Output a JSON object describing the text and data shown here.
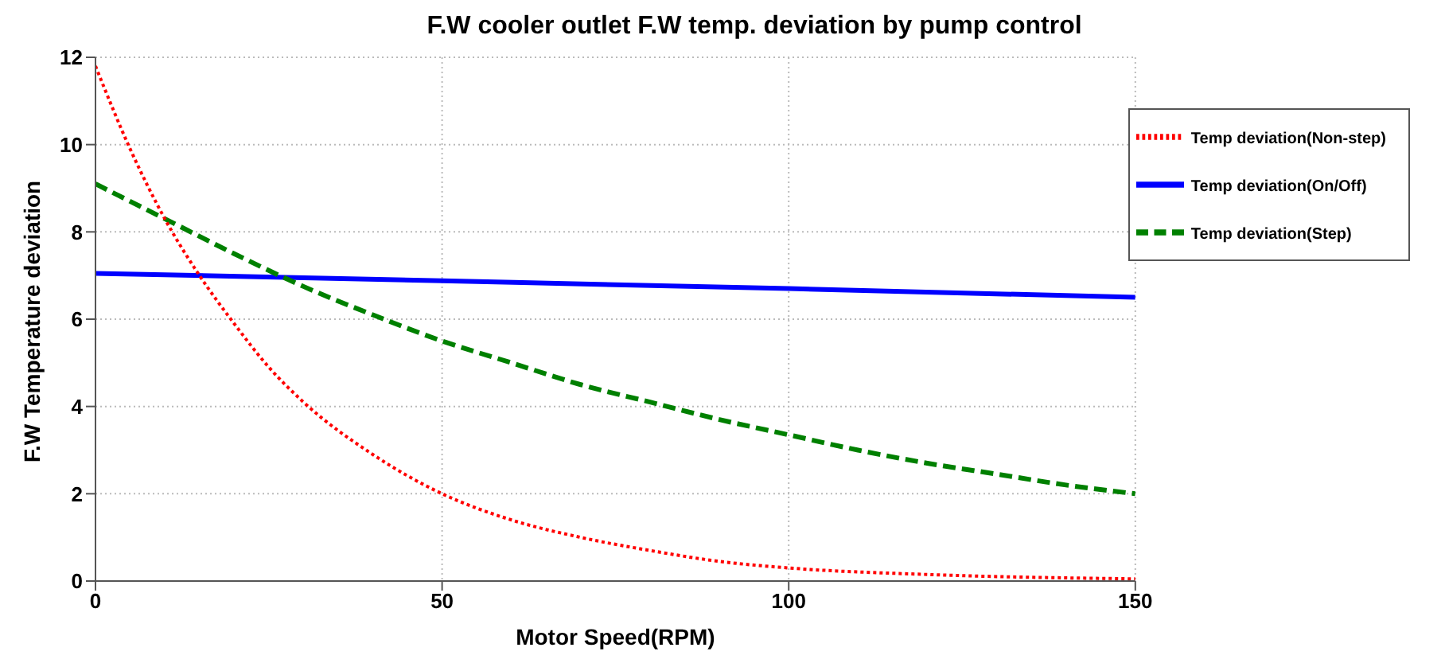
{
  "chart_data": {
    "type": "line",
    "title": "F.W cooler outlet F.W temp. deviation by pump control",
    "xlabel": "Motor Speed(RPM)",
    "ylabel": "F.W Temperature deviation",
    "xlim": [
      0,
      150
    ],
    "xticks": [
      0,
      50,
      100,
      150
    ],
    "ylim": [
      0,
      12
    ],
    "yticks": [
      0,
      2,
      4,
      6,
      8,
      10,
      12
    ],
    "grid": true,
    "legend": "top right",
    "marker": "none",
    "series": [
      {
        "name": "Temp deviation(On/Off)",
        "color": "#0000ff",
        "line_style": "solid",
        "x": [
          0,
          50,
          100,
          150
        ],
        "values": [
          7.05,
          6.88,
          6.7,
          6.5
        ]
      },
      {
        "name": "Temp deviation(Step)",
        "color": "#008000",
        "line_style": "dashed",
        "x": [
          0,
          10,
          20,
          30,
          40,
          50,
          60,
          70,
          80,
          90,
          100,
          110,
          120,
          130,
          140,
          150
        ],
        "values": [
          9.1,
          8.3,
          7.5,
          6.75,
          6.1,
          5.5,
          5.0,
          4.5,
          4.1,
          3.7,
          3.35,
          3.0,
          2.7,
          2.45,
          2.2,
          2.0
        ]
      },
      {
        "name": "Temp deviation(Non-step)",
        "color": "#ff0000",
        "line_style": "dotted",
        "x": [
          0,
          5,
          10,
          15,
          20,
          25,
          30,
          40,
          50,
          60,
          70,
          80,
          90,
          100,
          120,
          150
        ],
        "values": [
          11.8,
          9.9,
          8.3,
          7.0,
          5.9,
          4.9,
          4.1,
          2.9,
          2.0,
          1.4,
          1.0,
          0.7,
          0.45,
          0.3,
          0.15,
          0.05
        ]
      }
    ]
  }
}
